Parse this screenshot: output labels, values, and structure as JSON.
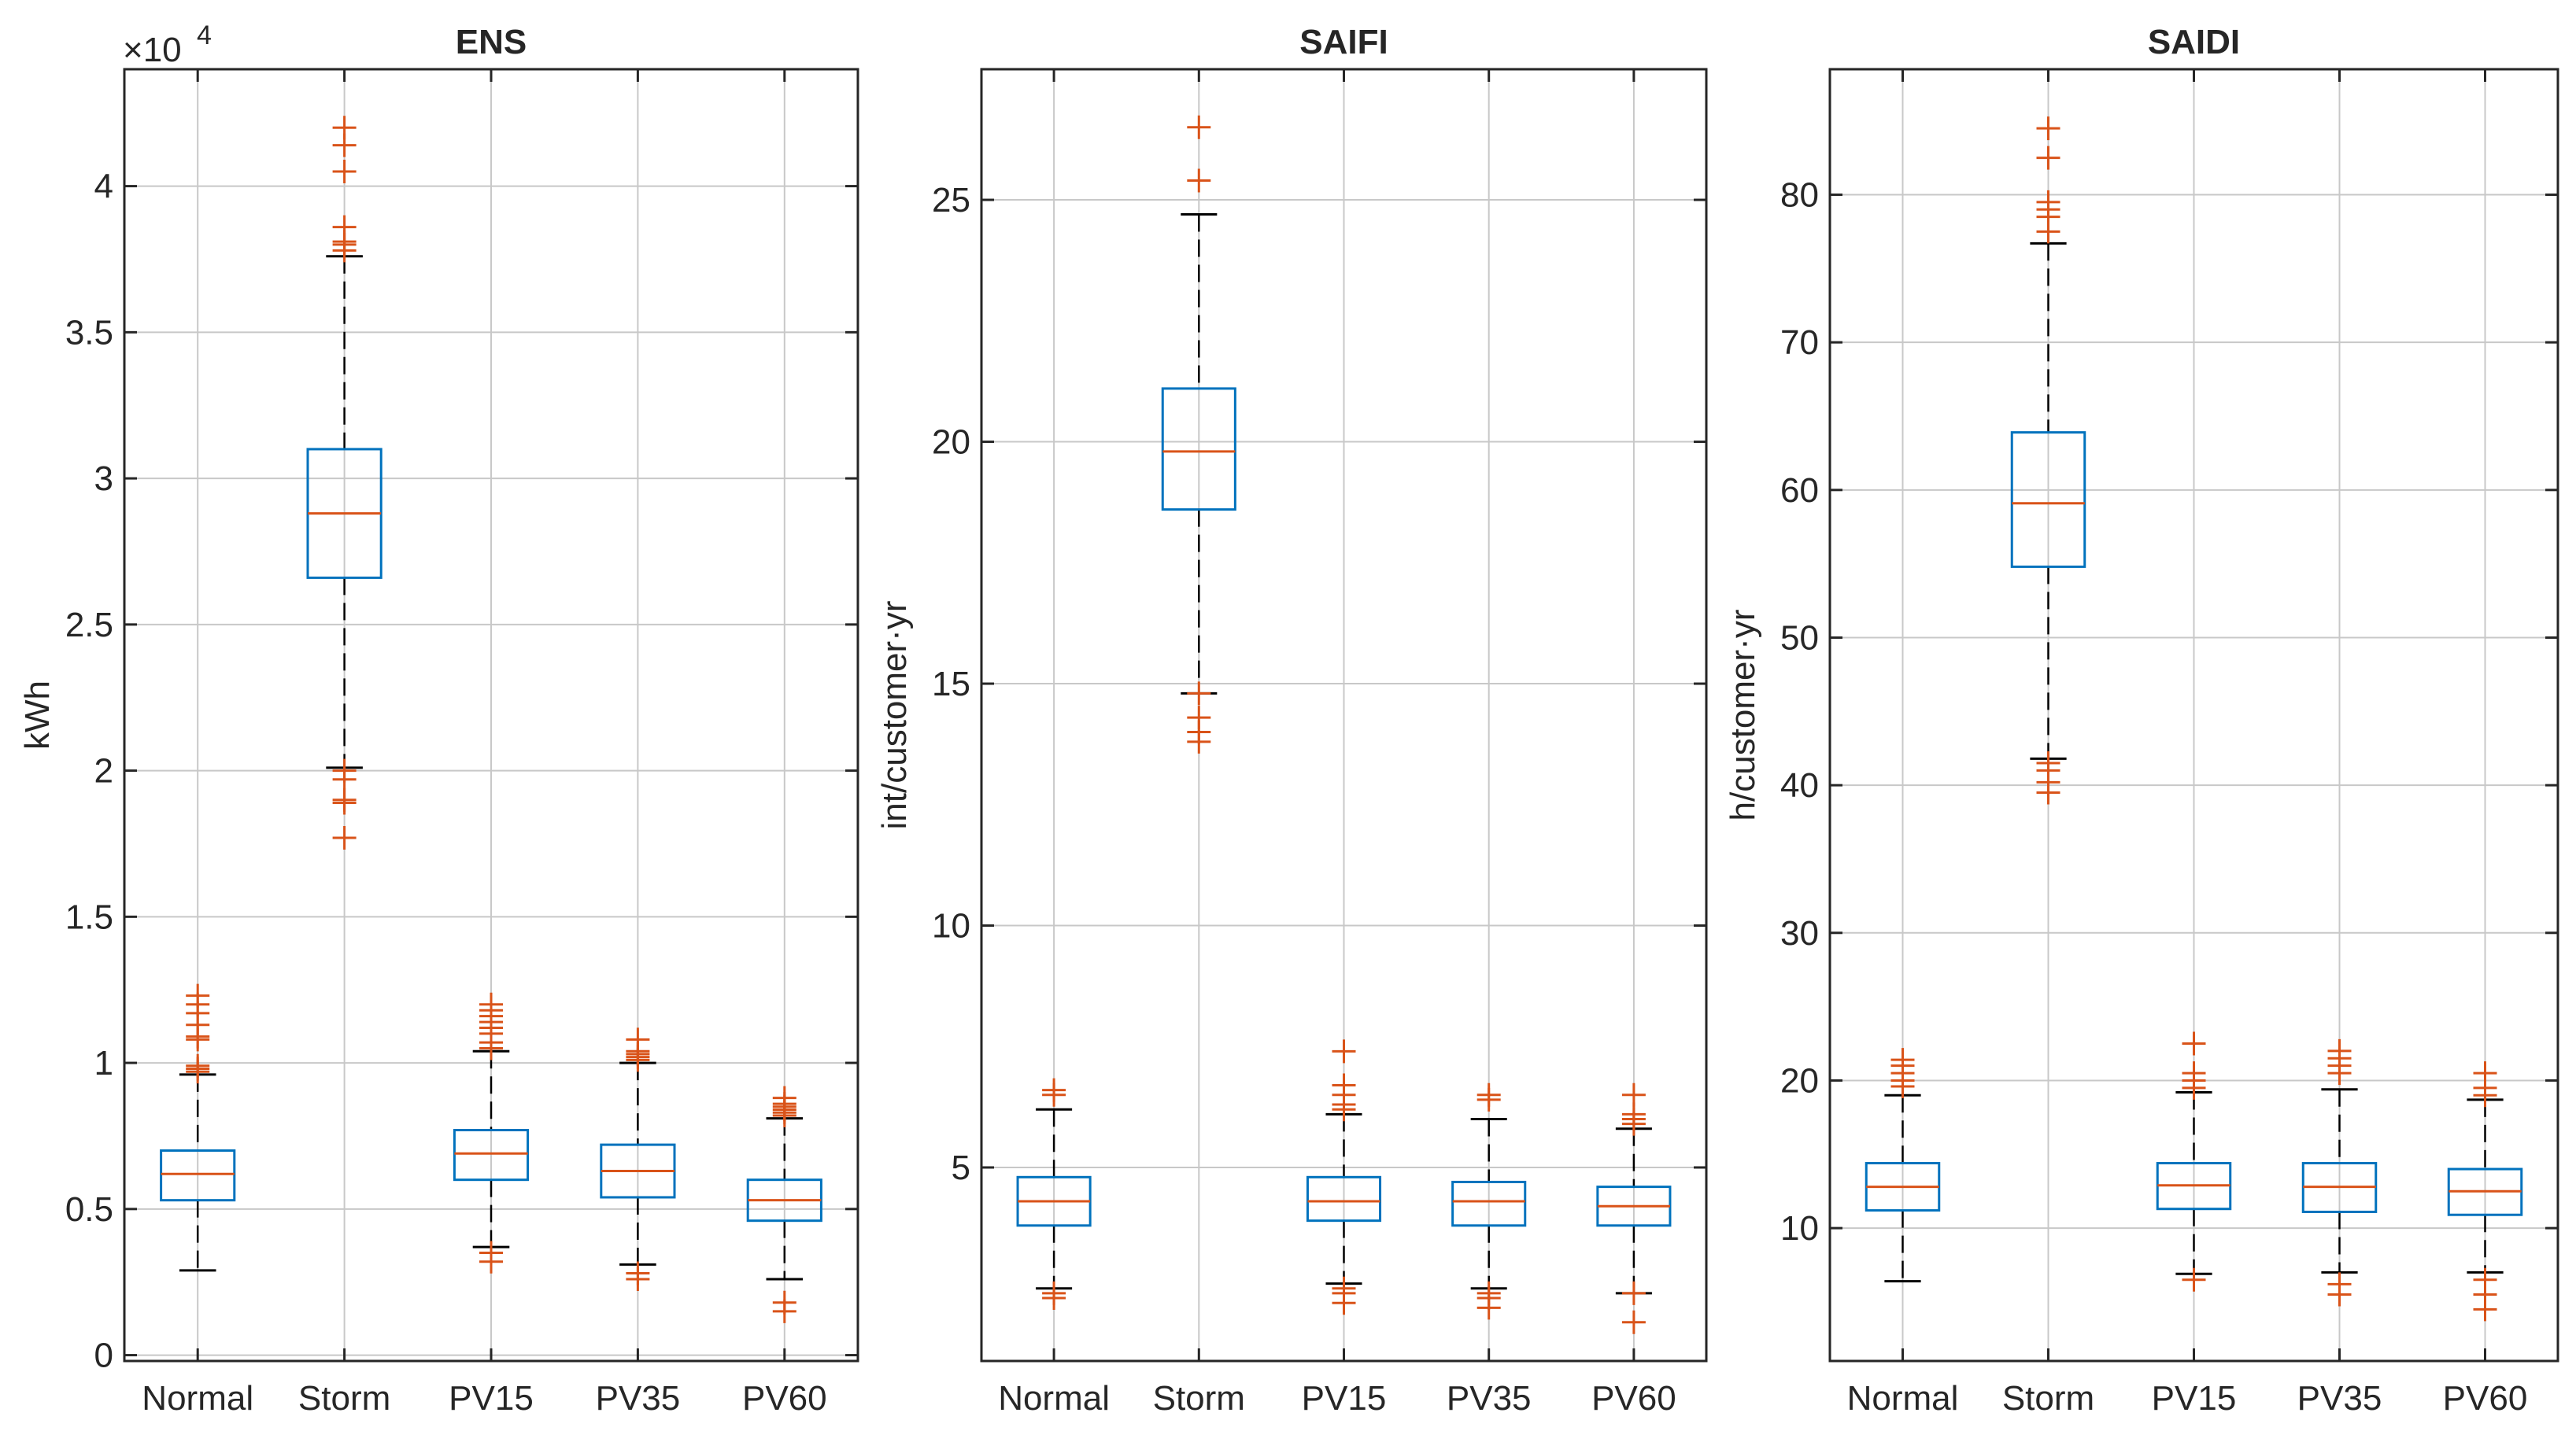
{
  "colors": {
    "box": "#0072BD",
    "median": "#D95319",
    "outlier": "#D95319",
    "whisker": "#000000",
    "grid": "#c8c8c8",
    "axis": "#262626"
  },
  "chart_data": [
    {
      "type": "boxplot",
      "title": "ENS",
      "ylabel": "kWh",
      "exponent_label": "×10",
      "exponent_power": "4",
      "grid": true,
      "ylim": [
        -0.02,
        4.4
      ],
      "yticks": [
        0,
        0.5,
        1,
        1.5,
        2,
        2.5,
        3,
        3.5,
        4
      ],
      "ytick_labels": [
        "0",
        "0.5",
        "1",
        "1.5",
        "2",
        "2.5",
        "3",
        "3.5",
        "4"
      ],
      "categories": [
        "Normal",
        "Storm",
        "PV15",
        "PV35",
        "PV60"
      ],
      "boxes": [
        {
          "low": 0.29,
          "q1": 0.53,
          "median": 0.62,
          "q3": 0.7,
          "high": 0.96,
          "outliers": [
            0.97,
            0.98,
            0.99,
            1.08,
            1.09,
            1.13,
            1.17,
            1.2,
            1.23
          ]
        },
        {
          "low": 2.01,
          "q1": 2.66,
          "median": 2.88,
          "q3": 3.1,
          "high": 3.76,
          "outliers": [
            1.77,
            1.89,
            1.9,
            1.97,
            2.0,
            3.78,
            3.8,
            3.81,
            3.86,
            4.05,
            4.14,
            4.2
          ]
        },
        {
          "low": 0.37,
          "q1": 0.6,
          "median": 0.69,
          "q3": 0.77,
          "high": 1.04,
          "outliers": [
            0.32,
            0.35,
            1.05,
            1.07,
            1.1,
            1.12,
            1.14,
            1.16,
            1.18,
            1.2
          ]
        },
        {
          "low": 0.31,
          "q1": 0.54,
          "median": 0.63,
          "q3": 0.72,
          "high": 1.0,
          "outliers": [
            0.26,
            0.28,
            1.01,
            1.02,
            1.03,
            1.04,
            1.08
          ]
        },
        {
          "low": 0.26,
          "q1": 0.46,
          "median": 0.53,
          "q3": 0.6,
          "high": 0.81,
          "outliers": [
            0.15,
            0.18,
            0.82,
            0.83,
            0.84,
            0.85,
            0.86,
            0.88
          ]
        }
      ]
    },
    {
      "type": "boxplot",
      "title": "SAIFI",
      "ylabel": "int/customer·yr",
      "grid": true,
      "ylim": [
        1,
        27.7
      ],
      "yticks": [
        5,
        10,
        15,
        20,
        25
      ],
      "ytick_labels": [
        "5",
        "10",
        "15",
        "20",
        "25"
      ],
      "categories": [
        "Normal",
        "Storm",
        "PV15",
        "PV35",
        "PV60"
      ],
      "boxes": [
        {
          "low": 2.5,
          "q1": 3.8,
          "median": 4.3,
          "q3": 4.8,
          "high": 6.2,
          "outliers": [
            2.3,
            2.4,
            6.5,
            6.6
          ]
        },
        {
          "low": 14.8,
          "q1": 18.6,
          "median": 19.8,
          "q3": 21.1,
          "high": 24.7,
          "outliers": [
            13.8,
            14.0,
            14.3,
            14.8,
            25.4,
            26.5
          ]
        },
        {
          "low": 2.6,
          "q1": 3.9,
          "median": 4.3,
          "q3": 4.8,
          "high": 6.1,
          "outliers": [
            2.2,
            2.4,
            2.5,
            6.2,
            6.3,
            6.5,
            6.7,
            7.4
          ]
        },
        {
          "low": 2.5,
          "q1": 3.8,
          "median": 4.3,
          "q3": 4.7,
          "high": 6.0,
          "outliers": [
            2.1,
            2.3,
            2.4,
            6.4,
            6.5
          ]
        },
        {
          "low": 2.4,
          "q1": 3.8,
          "median": 4.2,
          "q3": 4.6,
          "high": 5.8,
          "outliers": [
            1.8,
            2.4,
            5.9,
            6.0,
            6.1,
            6.5
          ]
        }
      ]
    },
    {
      "type": "boxplot",
      "title": "SAIDI",
      "ylabel": "h/customer·yr",
      "grid": true,
      "ylim": [
        1,
        88.5
      ],
      "yticks": [
        10,
        20,
        30,
        40,
        50,
        60,
        70,
        80
      ],
      "ytick_labels": [
        "10",
        "20",
        "30",
        "40",
        "50",
        "60",
        "70",
        "80"
      ],
      "categories": [
        "Normal",
        "Storm",
        "PV15",
        "PV35",
        "PV60"
      ],
      "boxes": [
        {
          "low": 6.4,
          "q1": 11.2,
          "median": 12.8,
          "q3": 14.4,
          "high": 19.0,
          "outliers": [
            19.6,
            20.0,
            20.5,
            21.0,
            21.4
          ]
        },
        {
          "low": 41.8,
          "q1": 54.8,
          "median": 59.1,
          "q3": 63.9,
          "high": 76.7,
          "outliers": [
            39.5,
            40.2,
            41.0,
            41.5,
            77.5,
            78.5,
            79.0,
            79.5,
            82.5,
            84.5
          ]
        },
        {
          "low": 6.9,
          "q1": 11.3,
          "median": 12.9,
          "q3": 14.4,
          "high": 19.2,
          "outliers": [
            6.5,
            19.5,
            20.0,
            20.5,
            22.5
          ]
        },
        {
          "low": 7.0,
          "q1": 11.1,
          "median": 12.8,
          "q3": 14.4,
          "high": 19.4,
          "outliers": [
            5.5,
            6.2,
            20.5,
            21.0,
            21.5,
            22.0
          ]
        },
        {
          "low": 7.0,
          "q1": 10.9,
          "median": 12.5,
          "q3": 14.0,
          "high": 18.7,
          "outliers": [
            4.5,
            5.5,
            6.5,
            19.0,
            19.5,
            20.5
          ]
        }
      ]
    }
  ]
}
